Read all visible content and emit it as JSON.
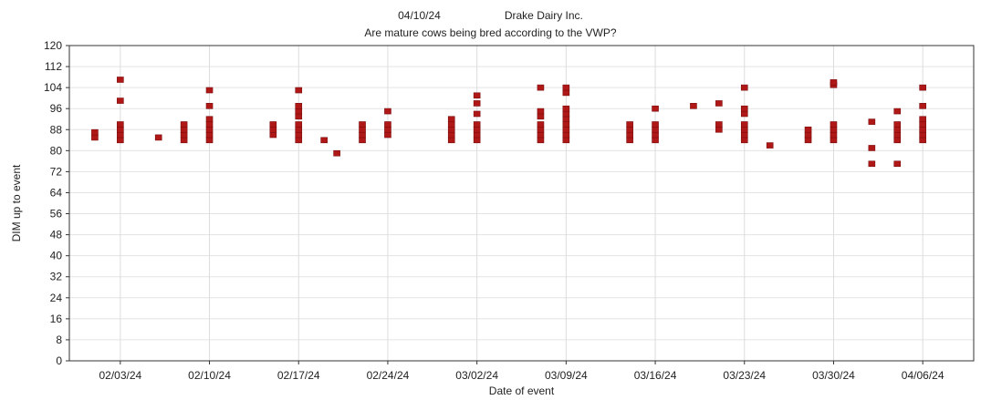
{
  "chart_data": {
    "type": "scatter",
    "title_date": "04/10/24",
    "title_company": "Drake Dairy Inc.",
    "subtitle": "Are mature cows being bred according to the VWP?",
    "xlabel": "Date of event",
    "ylabel": "DIM up to event",
    "ylim": [
      0,
      120
    ],
    "yticks": [
      0,
      8,
      16,
      24,
      32,
      40,
      48,
      56,
      64,
      72,
      80,
      88,
      96,
      104,
      112,
      120
    ],
    "xlim": [
      "01/30/24",
      "04/10/24"
    ],
    "xticks": [
      "02/03/24",
      "02/10/24",
      "02/17/24",
      "02/24/24",
      "03/02/24",
      "03/09/24",
      "03/16/24",
      "03/23/24",
      "03/30/24",
      "04/06/24"
    ],
    "grid": true,
    "marker_color": "#b01818",
    "points": [
      {
        "x": "02/01/24",
        "y": 85
      },
      {
        "x": "02/01/24",
        "y": 87
      },
      {
        "x": "02/03/24",
        "y": 84
      },
      {
        "x": "02/03/24",
        "y": 86
      },
      {
        "x": "02/03/24",
        "y": 88
      },
      {
        "x": "02/03/24",
        "y": 90
      },
      {
        "x": "02/03/24",
        "y": 99
      },
      {
        "x": "02/03/24",
        "y": 107
      },
      {
        "x": "02/06/24",
        "y": 85
      },
      {
        "x": "02/08/24",
        "y": 84
      },
      {
        "x": "02/08/24",
        "y": 86
      },
      {
        "x": "02/08/24",
        "y": 88
      },
      {
        "x": "02/08/24",
        "y": 90
      },
      {
        "x": "02/10/24",
        "y": 84
      },
      {
        "x": "02/10/24",
        "y": 86
      },
      {
        "x": "02/10/24",
        "y": 88
      },
      {
        "x": "02/10/24",
        "y": 90
      },
      {
        "x": "02/10/24",
        "y": 92
      },
      {
        "x": "02/10/24",
        "y": 97
      },
      {
        "x": "02/10/24",
        "y": 103
      },
      {
        "x": "02/15/24",
        "y": 86
      },
      {
        "x": "02/15/24",
        "y": 88
      },
      {
        "x": "02/15/24",
        "y": 90
      },
      {
        "x": "02/17/24",
        "y": 84
      },
      {
        "x": "02/17/24",
        "y": 86
      },
      {
        "x": "02/17/24",
        "y": 88
      },
      {
        "x": "02/17/24",
        "y": 90
      },
      {
        "x": "02/17/24",
        "y": 93
      },
      {
        "x": "02/17/24",
        "y": 95
      },
      {
        "x": "02/17/24",
        "y": 97
      },
      {
        "x": "02/17/24",
        "y": 103
      },
      {
        "x": "02/19/24",
        "y": 84
      },
      {
        "x": "02/20/24",
        "y": 79
      },
      {
        "x": "02/22/24",
        "y": 84
      },
      {
        "x": "02/22/24",
        "y": 86
      },
      {
        "x": "02/22/24",
        "y": 88
      },
      {
        "x": "02/22/24",
        "y": 90
      },
      {
        "x": "02/24/24",
        "y": 86
      },
      {
        "x": "02/24/24",
        "y": 88
      },
      {
        "x": "02/24/24",
        "y": 90
      },
      {
        "x": "02/24/24",
        "y": 95
      },
      {
        "x": "02/29/24",
        "y": 84
      },
      {
        "x": "02/29/24",
        "y": 86
      },
      {
        "x": "02/29/24",
        "y": 88
      },
      {
        "x": "02/29/24",
        "y": 90
      },
      {
        "x": "02/29/24",
        "y": 92
      },
      {
        "x": "03/02/24",
        "y": 84
      },
      {
        "x": "03/02/24",
        "y": 86
      },
      {
        "x": "03/02/24",
        "y": 88
      },
      {
        "x": "03/02/24",
        "y": 90
      },
      {
        "x": "03/02/24",
        "y": 94
      },
      {
        "x": "03/02/24",
        "y": 98
      },
      {
        "x": "03/02/24",
        "y": 101
      },
      {
        "x": "03/07/24",
        "y": 84
      },
      {
        "x": "03/07/24",
        "y": 86
      },
      {
        "x": "03/07/24",
        "y": 88
      },
      {
        "x": "03/07/24",
        "y": 90
      },
      {
        "x": "03/07/24",
        "y": 93
      },
      {
        "x": "03/07/24",
        "y": 95
      },
      {
        "x": "03/07/24",
        "y": 104
      },
      {
        "x": "03/09/24",
        "y": 84
      },
      {
        "x": "03/09/24",
        "y": 86
      },
      {
        "x": "03/09/24",
        "y": 88
      },
      {
        "x": "03/09/24",
        "y": 90
      },
      {
        "x": "03/09/24",
        "y": 92
      },
      {
        "x": "03/09/24",
        "y": 94
      },
      {
        "x": "03/09/24",
        "y": 96
      },
      {
        "x": "03/09/24",
        "y": 102
      },
      {
        "x": "03/09/24",
        "y": 104
      },
      {
        "x": "03/14/24",
        "y": 84
      },
      {
        "x": "03/14/24",
        "y": 86
      },
      {
        "x": "03/14/24",
        "y": 88
      },
      {
        "x": "03/14/24",
        "y": 90
      },
      {
        "x": "03/16/24",
        "y": 84
      },
      {
        "x": "03/16/24",
        "y": 86
      },
      {
        "x": "03/16/24",
        "y": 88
      },
      {
        "x": "03/16/24",
        "y": 90
      },
      {
        "x": "03/16/24",
        "y": 96
      },
      {
        "x": "03/19/24",
        "y": 97
      },
      {
        "x": "03/21/24",
        "y": 88
      },
      {
        "x": "03/21/24",
        "y": 90
      },
      {
        "x": "03/21/24",
        "y": 98
      },
      {
        "x": "03/23/24",
        "y": 84
      },
      {
        "x": "03/23/24",
        "y": 86
      },
      {
        "x": "03/23/24",
        "y": 88
      },
      {
        "x": "03/23/24",
        "y": 90
      },
      {
        "x": "03/23/24",
        "y": 94
      },
      {
        "x": "03/23/24",
        "y": 96
      },
      {
        "x": "03/23/24",
        "y": 104
      },
      {
        "x": "03/25/24",
        "y": 82
      },
      {
        "x": "03/28/24",
        "y": 84
      },
      {
        "x": "03/28/24",
        "y": 86
      },
      {
        "x": "03/28/24",
        "y": 88
      },
      {
        "x": "03/30/24",
        "y": 84
      },
      {
        "x": "03/30/24",
        "y": 86
      },
      {
        "x": "03/30/24",
        "y": 88
      },
      {
        "x": "03/30/24",
        "y": 90
      },
      {
        "x": "03/30/24",
        "y": 105
      },
      {
        "x": "03/30/24",
        "y": 106
      },
      {
        "x": "04/02/24",
        "y": 75
      },
      {
        "x": "04/02/24",
        "y": 81
      },
      {
        "x": "04/02/24",
        "y": 91
      },
      {
        "x": "04/04/24",
        "y": 75
      },
      {
        "x": "04/04/24",
        "y": 84
      },
      {
        "x": "04/04/24",
        "y": 86
      },
      {
        "x": "04/04/24",
        "y": 88
      },
      {
        "x": "04/04/24",
        "y": 90
      },
      {
        "x": "04/04/24",
        "y": 95
      },
      {
        "x": "04/06/24",
        "y": 84
      },
      {
        "x": "04/06/24",
        "y": 86
      },
      {
        "x": "04/06/24",
        "y": 88
      },
      {
        "x": "04/06/24",
        "y": 90
      },
      {
        "x": "04/06/24",
        "y": 92
      },
      {
        "x": "04/06/24",
        "y": 97
      },
      {
        "x": "04/06/24",
        "y": 104
      }
    ]
  }
}
